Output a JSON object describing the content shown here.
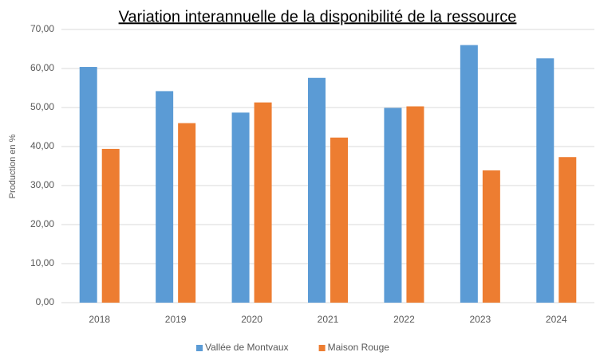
{
  "chart_data": {
    "type": "bar",
    "title": "Variation interannuelle de la disponibilité de la ressource",
    "y_label": "Production en %",
    "categories": [
      "2018",
      "2019",
      "2020",
      "2021",
      "2022",
      "2023",
      "2024"
    ],
    "series": [
      {
        "name": "Vallée de Montvaux",
        "color": "#5b9bd5",
        "values": [
          60.4,
          54.2,
          48.7,
          57.6,
          49.9,
          66.0,
          62.6
        ]
      },
      {
        "name": "Maison Rouge",
        "color": "#ed7d31",
        "values": [
          39.4,
          46.0,
          51.3,
          42.3,
          50.3,
          33.9,
          37.3
        ]
      }
    ],
    "ylim": [
      0,
      70
    ],
    "yticks": [
      {
        "value": 0,
        "label": "0,00"
      },
      {
        "value": 10,
        "label": "10,00"
      },
      {
        "value": 20,
        "label": "20,00"
      },
      {
        "value": 30,
        "label": "30,00"
      },
      {
        "value": 40,
        "label": "40,00"
      },
      {
        "value": 50,
        "label": "50,00"
      },
      {
        "value": 60,
        "label": "60,00"
      },
      {
        "value": 70,
        "label": "70,00"
      }
    ],
    "grid": true,
    "legend": "bottom"
  }
}
